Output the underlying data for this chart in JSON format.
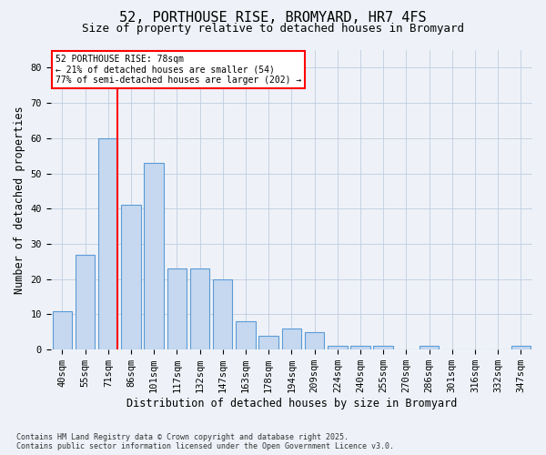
{
  "title_line1": "52, PORTHOUSE RISE, BROMYARD, HR7 4FS",
  "title_line2": "Size of property relative to detached houses in Bromyard",
  "xlabel": "Distribution of detached houses by size in Bromyard",
  "ylabel": "Number of detached properties",
  "categories": [
    "40sqm",
    "55sqm",
    "71sqm",
    "86sqm",
    "101sqm",
    "117sqm",
    "132sqm",
    "147sqm",
    "163sqm",
    "178sqm",
    "194sqm",
    "209sqm",
    "224sqm",
    "240sqm",
    "255sqm",
    "270sqm",
    "286sqm",
    "301sqm",
    "316sqm",
    "332sqm",
    "347sqm"
  ],
  "values": [
    11,
    27,
    60,
    41,
    53,
    23,
    23,
    20,
    8,
    4,
    6,
    5,
    1,
    1,
    1,
    0,
    1,
    0,
    0,
    0,
    1
  ],
  "bar_color": "#c5d8f0",
  "bar_edge_color": "#5b9bd5",
  "red_line_index": 2,
  "ylim": [
    0,
    85
  ],
  "yticks": [
    0,
    10,
    20,
    30,
    40,
    50,
    60,
    70,
    80
  ],
  "annotation_line1": "52 PORTHOUSE RISE: 78sqm",
  "annotation_line2": "← 21% of detached houses are smaller (54)",
  "annotation_line3": "77% of semi-detached houses are larger (202) →",
  "footer": "Contains HM Land Registry data © Crown copyright and database right 2025.\nContains public sector information licensed under the Open Government Licence v3.0.",
  "background_color": "#eef2f8",
  "grid_color": "#c0cce0",
  "title_fontsize": 11,
  "axis_label_fontsize": 8.5,
  "tick_fontsize": 7.5
}
